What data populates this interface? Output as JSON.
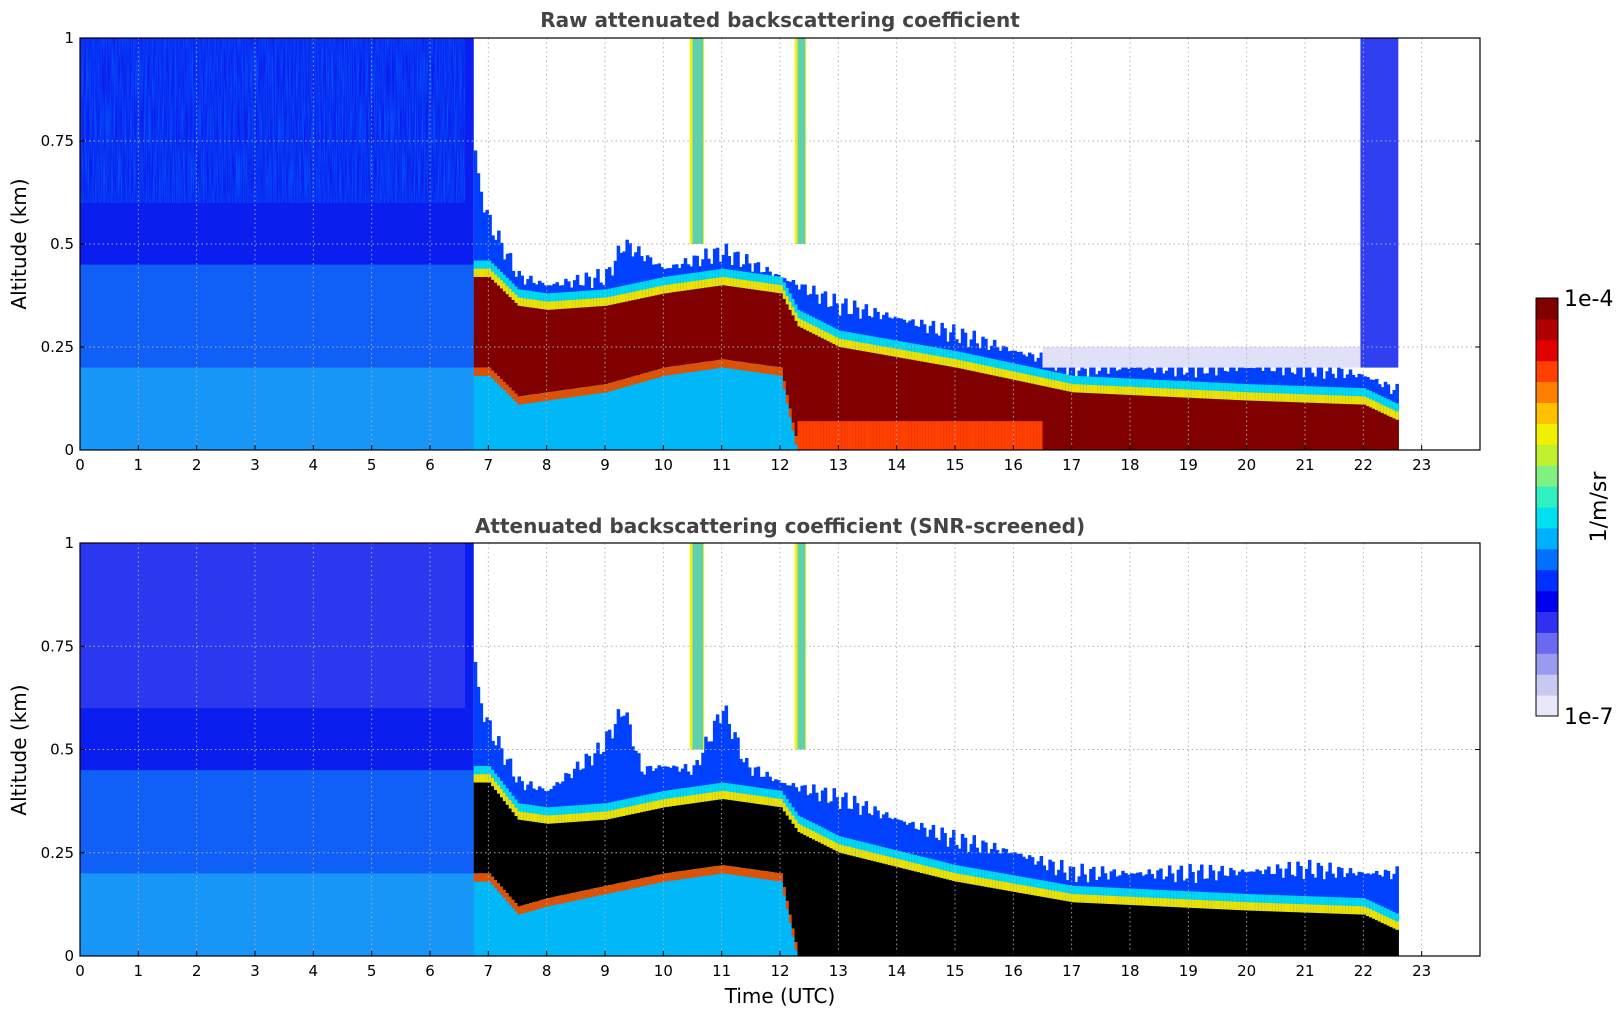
{
  "chart_data": [
    {
      "type": "heatmap",
      "title": "Raw attenuated backscattering coefficient",
      "ylabel": "Altitude (km)",
      "xlim": [
        0,
        24
      ],
      "ylim": [
        0,
        1
      ],
      "x_ticks": [
        "0",
        "1",
        "2",
        "3",
        "4",
        "5",
        "6",
        "7",
        "8",
        "9",
        "10",
        "11",
        "12",
        "13",
        "14",
        "15",
        "16",
        "17",
        "18",
        "19",
        "20",
        "21",
        "22",
        "23"
      ],
      "y_ticks": [
        "0",
        "0.25",
        "0.5",
        "0.75",
        "1"
      ],
      "grid": true,
      "data_extent_hours": [
        0,
        22.6
      ],
      "layer_top_km": [
        {
          "time": 0,
          "value": 1.0
        },
        {
          "time": 6.6,
          "value": 1.0
        },
        {
          "time": 6.8,
          "value": 0.65
        },
        {
          "time": 7,
          "value": 0.55
        },
        {
          "time": 7.5,
          "value": 0.42
        },
        {
          "time": 8,
          "value": 0.4
        },
        {
          "time": 9,
          "value": 0.42
        },
        {
          "time": 9.3,
          "value": 0.5
        },
        {
          "time": 10,
          "value": 0.44
        },
        {
          "time": 11,
          "value": 0.48
        },
        {
          "time": 12,
          "value": 0.42
        },
        {
          "time": 13,
          "value": 0.35
        },
        {
          "time": 14,
          "value": 0.32
        },
        {
          "time": 15,
          "value": 0.28
        },
        {
          "time": 16,
          "value": 0.24
        },
        {
          "time": 17,
          "value": 0.2
        },
        {
          "time": 19,
          "value": 0.2
        },
        {
          "time": 21,
          "value": 0.2
        },
        {
          "time": 22,
          "value": 0.18
        },
        {
          "time": 22.6,
          "value": 0.14
        }
      ],
      "dense_layer_km": [
        {
          "time": 7.0,
          "bottom": 0.2,
          "top": 0.42
        },
        {
          "time": 7.5,
          "bottom": 0.13,
          "top": 0.35
        },
        {
          "time": 8,
          "bottom": 0.14,
          "top": 0.34
        },
        {
          "time": 9,
          "bottom": 0.16,
          "top": 0.35
        },
        {
          "time": 10,
          "bottom": 0.2,
          "top": 0.38
        },
        {
          "time": 11,
          "bottom": 0.22,
          "top": 0.4
        },
        {
          "time": 12,
          "bottom": 0.2,
          "top": 0.38
        },
        {
          "time": 12.3,
          "bottom": 0.0,
          "top": 0.3
        },
        {
          "time": 13,
          "bottom": 0.0,
          "top": 0.25
        },
        {
          "time": 15,
          "bottom": 0.0,
          "top": 0.2
        },
        {
          "time": 17,
          "bottom": 0.0,
          "top": 0.14
        },
        {
          "time": 20,
          "bottom": 0.0,
          "top": 0.12
        },
        {
          "time": 22,
          "bottom": 0.0,
          "top": 0.11
        },
        {
          "time": 22.6,
          "bottom": 0.0,
          "top": 0.07
        }
      ]
    },
    {
      "type": "heatmap",
      "title": "Attenuated backscattering coefficient (SNR-screened)",
      "xlabel": "Time (UTC)",
      "ylabel": "Altitude (km)",
      "xlim": [
        0,
        24
      ],
      "ylim": [
        0,
        1
      ],
      "x_ticks": [
        "0",
        "1",
        "2",
        "3",
        "4",
        "5",
        "6",
        "7",
        "8",
        "9",
        "10",
        "11",
        "12",
        "13",
        "14",
        "15",
        "16",
        "17",
        "18",
        "19",
        "20",
        "21",
        "22",
        "23"
      ],
      "y_ticks": [
        "0",
        "0.25",
        "0.5",
        "0.75",
        "1"
      ],
      "grid": true,
      "data_extent_hours": [
        0,
        22.6
      ],
      "layer_top_km": [
        {
          "time": 0,
          "value": 1.0
        },
        {
          "time": 6.6,
          "value": 1.0
        },
        {
          "time": 6.8,
          "value": 0.63
        },
        {
          "time": 7,
          "value": 0.55
        },
        {
          "time": 7.5,
          "value": 0.42
        },
        {
          "time": 8,
          "value": 0.4
        },
        {
          "time": 8.9,
          "value": 0.5
        },
        {
          "time": 9.3,
          "value": 0.6
        },
        {
          "time": 9.6,
          "value": 0.45
        },
        {
          "time": 10,
          "value": 0.46
        },
        {
          "time": 10.5,
          "value": 0.45
        },
        {
          "time": 11,
          "value": 0.6
        },
        {
          "time": 11.4,
          "value": 0.46
        },
        {
          "time": 12,
          "value": 0.42
        },
        {
          "time": 13,
          "value": 0.38
        },
        {
          "time": 14,
          "value": 0.33
        },
        {
          "time": 15,
          "value": 0.28
        },
        {
          "time": 16,
          "value": 0.25
        },
        {
          "time": 17,
          "value": 0.2
        },
        {
          "time": 19,
          "value": 0.2
        },
        {
          "time": 21,
          "value": 0.21
        },
        {
          "time": 22,
          "value": 0.2
        },
        {
          "time": 22.6,
          "value": 0.2
        }
      ],
      "dense_layer_km": [
        {
          "time": 7.0,
          "bottom": 0.2,
          "top": 0.42
        },
        {
          "time": 7.5,
          "bottom": 0.12,
          "top": 0.33
        },
        {
          "time": 8,
          "bottom": 0.14,
          "top": 0.32
        },
        {
          "time": 9,
          "bottom": 0.17,
          "top": 0.33
        },
        {
          "time": 10,
          "bottom": 0.2,
          "top": 0.36
        },
        {
          "time": 11,
          "bottom": 0.22,
          "top": 0.38
        },
        {
          "time": 12,
          "bottom": 0.2,
          "top": 0.36
        },
        {
          "time": 12.3,
          "bottom": 0.0,
          "top": 0.3
        },
        {
          "time": 13,
          "bottom": 0.0,
          "top": 0.25
        },
        {
          "time": 15,
          "bottom": 0.0,
          "top": 0.18
        },
        {
          "time": 17,
          "bottom": 0.0,
          "top": 0.13
        },
        {
          "time": 20,
          "bottom": 0.0,
          "top": 0.11
        },
        {
          "time": 22,
          "bottom": 0.0,
          "top": 0.1
        },
        {
          "time": 22.6,
          "bottom": 0.0,
          "top": 0.06
        }
      ]
    }
  ],
  "colorbar": {
    "label": "1/m/sr",
    "max_label": "1e-4",
    "min_label": "1e-7",
    "colors": [
      "#e8e8f8",
      "#c8c8f0",
      "#9a9af0",
      "#6a6af0",
      "#3030f0",
      "#0000f0",
      "#0030ff",
      "#0070ff",
      "#00b0ff",
      "#00e0f0",
      "#30f0c0",
      "#80f080",
      "#c0f030",
      "#f0f000",
      "#ffc000",
      "#ff8000",
      "#ff4000",
      "#e00000",
      "#b00000",
      "#800000"
    ]
  }
}
